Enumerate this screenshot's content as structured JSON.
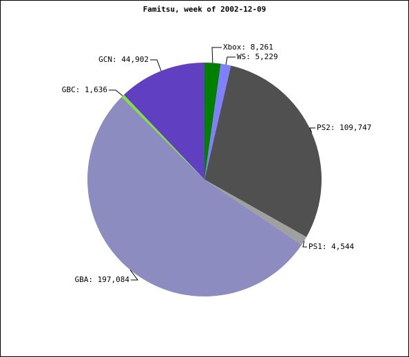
{
  "chart_data": {
    "type": "pie",
    "title": "Famitsu, week of 2002-12-09",
    "categories": [
      "Xbox",
      "WS",
      "PS2",
      "PS1",
      "GBA",
      "GBC",
      "GCN"
    ],
    "values": [
      8261,
      5229,
      109747,
      4544,
      197084,
      1636,
      44902
    ],
    "value_labels": [
      "Xbox: 8,261",
      "WS: 5,229",
      "PS2: 109,747",
      "PS1: 4,544",
      "GBA: 197,084",
      "GBC: 1,636",
      "GCN: 44,902"
    ],
    "colors": [
      "#008000",
      "#8080ff",
      "#505050",
      "#a0a0a0",
      "#8c8cc0",
      "#80e040",
      "#6040c0"
    ]
  }
}
